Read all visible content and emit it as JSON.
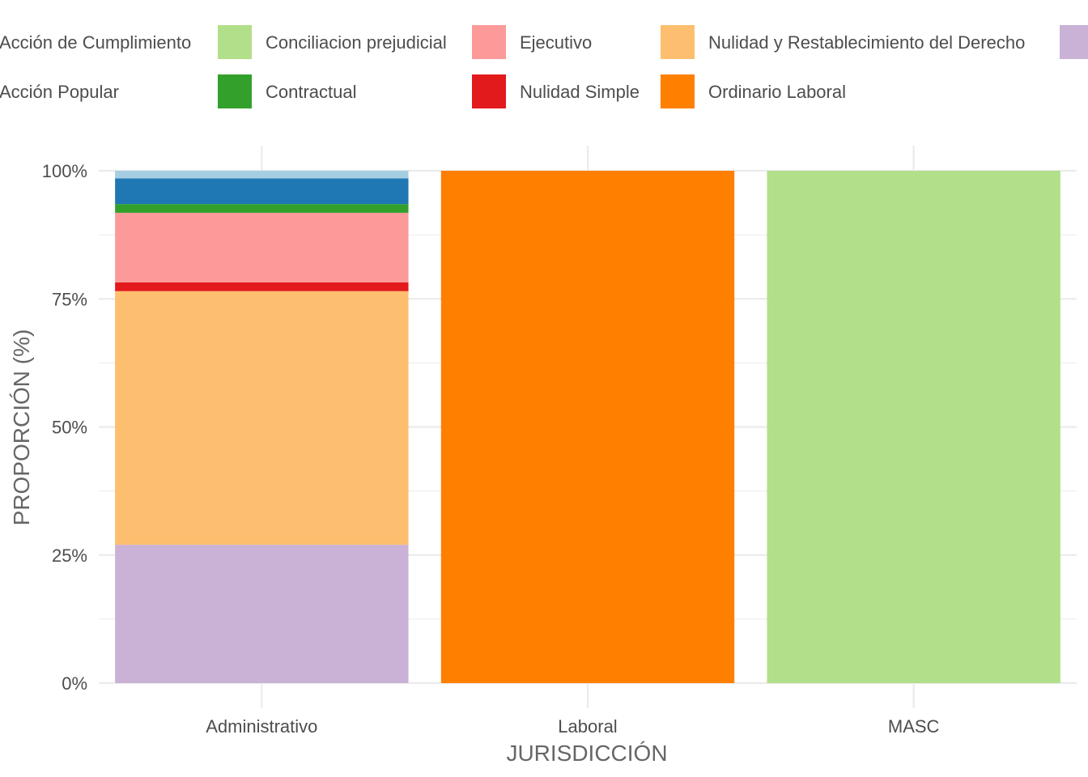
{
  "chart_data": {
    "type": "bar",
    "stacked": true,
    "normalized": true,
    "xlabel": "JURISDICCIÓN",
    "ylabel": "PROPORCIÓN (%)",
    "ylim": [
      0,
      100
    ],
    "yticks": [
      "0%",
      "25%",
      "50%",
      "75%",
      "100%"
    ],
    "categories": [
      "Administrativo",
      "Laboral",
      "MASC"
    ],
    "grid": true,
    "legend_position": "top",
    "legend": [
      {
        "name": "Acción de Cumplimiento",
        "color": "#A6CEE3"
      },
      {
        "name": "Acción Popular",
        "color": "#1F78B4"
      },
      {
        "name": "Conciliacion prejudicial",
        "color": "#B2DF8A"
      },
      {
        "name": "Contractual",
        "color": "#33A02C"
      },
      {
        "name": "Ejecutivo",
        "color": "#FB9A99"
      },
      {
        "name": "Nulidad Simple",
        "color": "#E31A1C"
      },
      {
        "name": "Nulidad y Restablecimiento del Derecho",
        "color": "#FDBF6F"
      },
      {
        "name": "Ordinario Laboral",
        "color": "#FF7F00"
      },
      {
        "name": "",
        "color": "#CAB2D6"
      }
    ],
    "series": [
      {
        "name": "Acción de Cumplimiento",
        "color": "#A6CEE3",
        "values": [
          1.5,
          0,
          0
        ]
      },
      {
        "name": "Acción Popular",
        "color": "#1F78B4",
        "values": [
          5.0,
          0,
          0
        ]
      },
      {
        "name": "Conciliacion prejudicial",
        "color": "#B2DF8A",
        "values": [
          0,
          0,
          100
        ]
      },
      {
        "name": "Contractual",
        "color": "#33A02C",
        "values": [
          1.7,
          0,
          0
        ]
      },
      {
        "name": "Ejecutivo",
        "color": "#FB9A99",
        "values": [
          13.6,
          0,
          0
        ]
      },
      {
        "name": "Nulidad Simple",
        "color": "#E31A1C",
        "values": [
          1.7,
          0,
          0
        ]
      },
      {
        "name": "Nulidad y Restablecimiento del Derecho",
        "color": "#FDBF6F",
        "values": [
          49.5,
          0,
          0
        ]
      },
      {
        "name": "Ordinario Laboral",
        "color": "#FF7F00",
        "values": [
          0,
          100,
          0
        ]
      },
      {
        "name": "",
        "color": "#CAB2D6",
        "values": [
          27.0,
          0,
          0
        ]
      }
    ]
  }
}
